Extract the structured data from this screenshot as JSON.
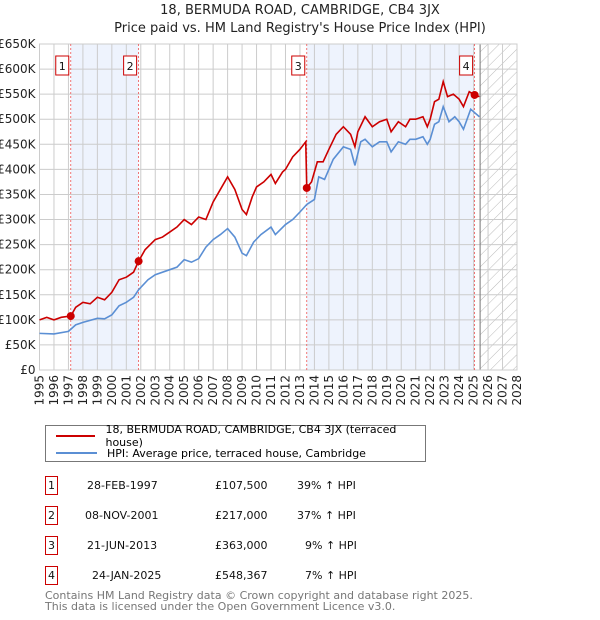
{
  "chart_data": {
    "type": "line",
    "title": "18, BERMUDA ROAD, CAMBRIDGE, CB4 3JX",
    "subtitle": "Price paid vs. HM Land Registry's House Price Index (HPI)",
    "xlim": [
      1995,
      2028
    ],
    "ylim": [
      0,
      650000
    ],
    "x_ticks": [
      "1995",
      "1996",
      "1997",
      "1998",
      "1999",
      "2000",
      "2001",
      "2002",
      "2003",
      "2004",
      "2005",
      "2006",
      "2007",
      "2008",
      "2009",
      "2010",
      "2011",
      "2012",
      "2013",
      "2014",
      "2015",
      "2016",
      "2017",
      "2018",
      "2019",
      "2020",
      "2021",
      "2022",
      "2023",
      "2024",
      "2025",
      "2026",
      "2027",
      "2028"
    ],
    "y_ticks": [
      {
        "v": 0,
        "label": "£0"
      },
      {
        "v": 50000,
        "label": "£50K"
      },
      {
        "v": 100000,
        "label": "£100K"
      },
      {
        "v": 150000,
        "label": "£150K"
      },
      {
        "v": 200000,
        "label": "£200K"
      },
      {
        "v": 250000,
        "label": "£250K"
      },
      {
        "v": 300000,
        "label": "£300K"
      },
      {
        "v": 350000,
        "label": "£350K"
      },
      {
        "v": 400000,
        "label": "£400K"
      },
      {
        "v": 450000,
        "label": "£450K"
      },
      {
        "v": 500000,
        "label": "£500K"
      },
      {
        "v": 550000,
        "label": "£550K"
      },
      {
        "v": 600000,
        "label": "£600K"
      },
      {
        "v": 650000,
        "label": "£650K"
      }
    ],
    "grid": true,
    "forecast_hatch_from": 2025.45,
    "shaded_spans": [
      [
        1997.16,
        2001.85
      ],
      [
        2013.47,
        2025.07
      ]
    ],
    "series": [
      {
        "name": "18, BERMUDA ROAD, CAMBRIDGE, CB4 3JX (terraced house)",
        "color": "#cc0000",
        "x": [
          1995,
          1995.5,
          1996,
          1996.5,
          1997,
          1997.16,
          1997.5,
          1998,
          1998.5,
          1999,
          1999.5,
          2000,
          2000.5,
          2001,
          2001.5,
          2001.85,
          2002.3,
          2003,
          2003.5,
          2004,
          2004.5,
          2005,
          2005.5,
          2006,
          2006.5,
          2007,
          2007.5,
          2008,
          2008.5,
          2009,
          2009.3,
          2009.7,
          2010,
          2010.5,
          2011,
          2011.3,
          2011.8,
          2012,
          2012.5,
          2013,
          2013.4,
          2013.47,
          2013.8,
          2014.2,
          2014.6,
          2015,
          2015.5,
          2016,
          2016.5,
          2016.8,
          2017,
          2017.5,
          2018,
          2018.5,
          2019,
          2019.3,
          2019.8,
          2020.3,
          2020.6,
          2021,
          2021.5,
          2021.8,
          2022,
          2022.3,
          2022.6,
          2022.9,
          2023.2,
          2023.6,
          2024,
          2024.3,
          2024.7,
          2025.07,
          2025.4
        ],
        "y": [
          100000,
          105000,
          100000,
          105000,
          107000,
          107500,
          125000,
          135000,
          132000,
          145000,
          140000,
          155000,
          180000,
          185000,
          195000,
          217000,
          240000,
          260000,
          265000,
          275000,
          285000,
          300000,
          290000,
          305000,
          300000,
          335000,
          360000,
          385000,
          360000,
          320000,
          310000,
          345000,
          365000,
          375000,
          390000,
          372000,
          395000,
          400000,
          425000,
          440000,
          455000,
          363000,
          375000,
          415000,
          415000,
          440000,
          470000,
          485000,
          470000,
          445000,
          475000,
          505000,
          485000,
          495000,
          500000,
          475000,
          495000,
          485000,
          500000,
          500000,
          505000,
          485000,
          500000,
          535000,
          540000,
          575000,
          545000,
          550000,
          540000,
          525000,
          555000,
          548367,
          545000
        ]
      },
      {
        "name": "HPI: Average price, terraced house, Cambridge",
        "color": "#5b8fd4",
        "x": [
          1995,
          1996,
          1997,
          1997.5,
          1998,
          1999,
          1999.5,
          2000,
          2000.5,
          2001,
          2001.5,
          2001.85,
          2002.5,
          2003,
          2004,
          2004.5,
          2005,
          2005.5,
          2006,
          2006.5,
          2007,
          2007.5,
          2008,
          2008.5,
          2009,
          2009.3,
          2009.8,
          2010.3,
          2011,
          2011.3,
          2012,
          2012.5,
          2013,
          2013.47,
          2014,
          2014.3,
          2014.7,
          2015.3,
          2016,
          2016.5,
          2016.8,
          2017.2,
          2017.5,
          2018,
          2018.5,
          2019,
          2019.3,
          2019.8,
          2020.3,
          2020.6,
          2021,
          2021.5,
          2021.8,
          2022,
          2022.3,
          2022.6,
          2022.9,
          2023.3,
          2023.7,
          2024,
          2024.3,
          2024.8,
          2025.2,
          2025.4
        ],
        "y": [
          73000,
          72000,
          77000,
          90000,
          95000,
          103000,
          102000,
          110000,
          128000,
          135000,
          145000,
          160000,
          180000,
          190000,
          200000,
          205000,
          220000,
          215000,
          222000,
          245000,
          260000,
          270000,
          282000,
          265000,
          233000,
          228000,
          255000,
          270000,
          285000,
          270000,
          290000,
          300000,
          315000,
          330000,
          340000,
          385000,
          380000,
          420000,
          445000,
          440000,
          408000,
          455000,
          460000,
          445000,
          455000,
          455000,
          435000,
          455000,
          450000,
          460000,
          460000,
          465000,
          450000,
          460000,
          490000,
          495000,
          525000,
          495000,
          505000,
          495000,
          480000,
          520000,
          510000,
          505000
        ]
      }
    ],
    "sales": [
      {
        "n": "1",
        "x": 1997.16,
        "y": 107500,
        "date": "28-FEB-1997",
        "price": "£107,500",
        "hpi": "39% ↑ HPI"
      },
      {
        "n": "2",
        "x": 2001.85,
        "y": 217000,
        "date": "08-NOV-2001",
        "price": "£217,000",
        "hpi": "37% ↑ HPI"
      },
      {
        "n": "3",
        "x": 2013.47,
        "y": 363000,
        "date": "21-JUN-2013",
        "price": "£363,000",
        "hpi": "9% ↑ HPI"
      },
      {
        "n": "4",
        "x": 2025.07,
        "y": 548367,
        "date": "24-JAN-2025",
        "price": "£548,367",
        "hpi": "7% ↑ HPI"
      }
    ]
  },
  "footer": {
    "line1": "Contains HM Land Registry data © Crown copyright and database right 2025.",
    "line2": "This data is licensed under the Open Government Licence v3.0."
  }
}
